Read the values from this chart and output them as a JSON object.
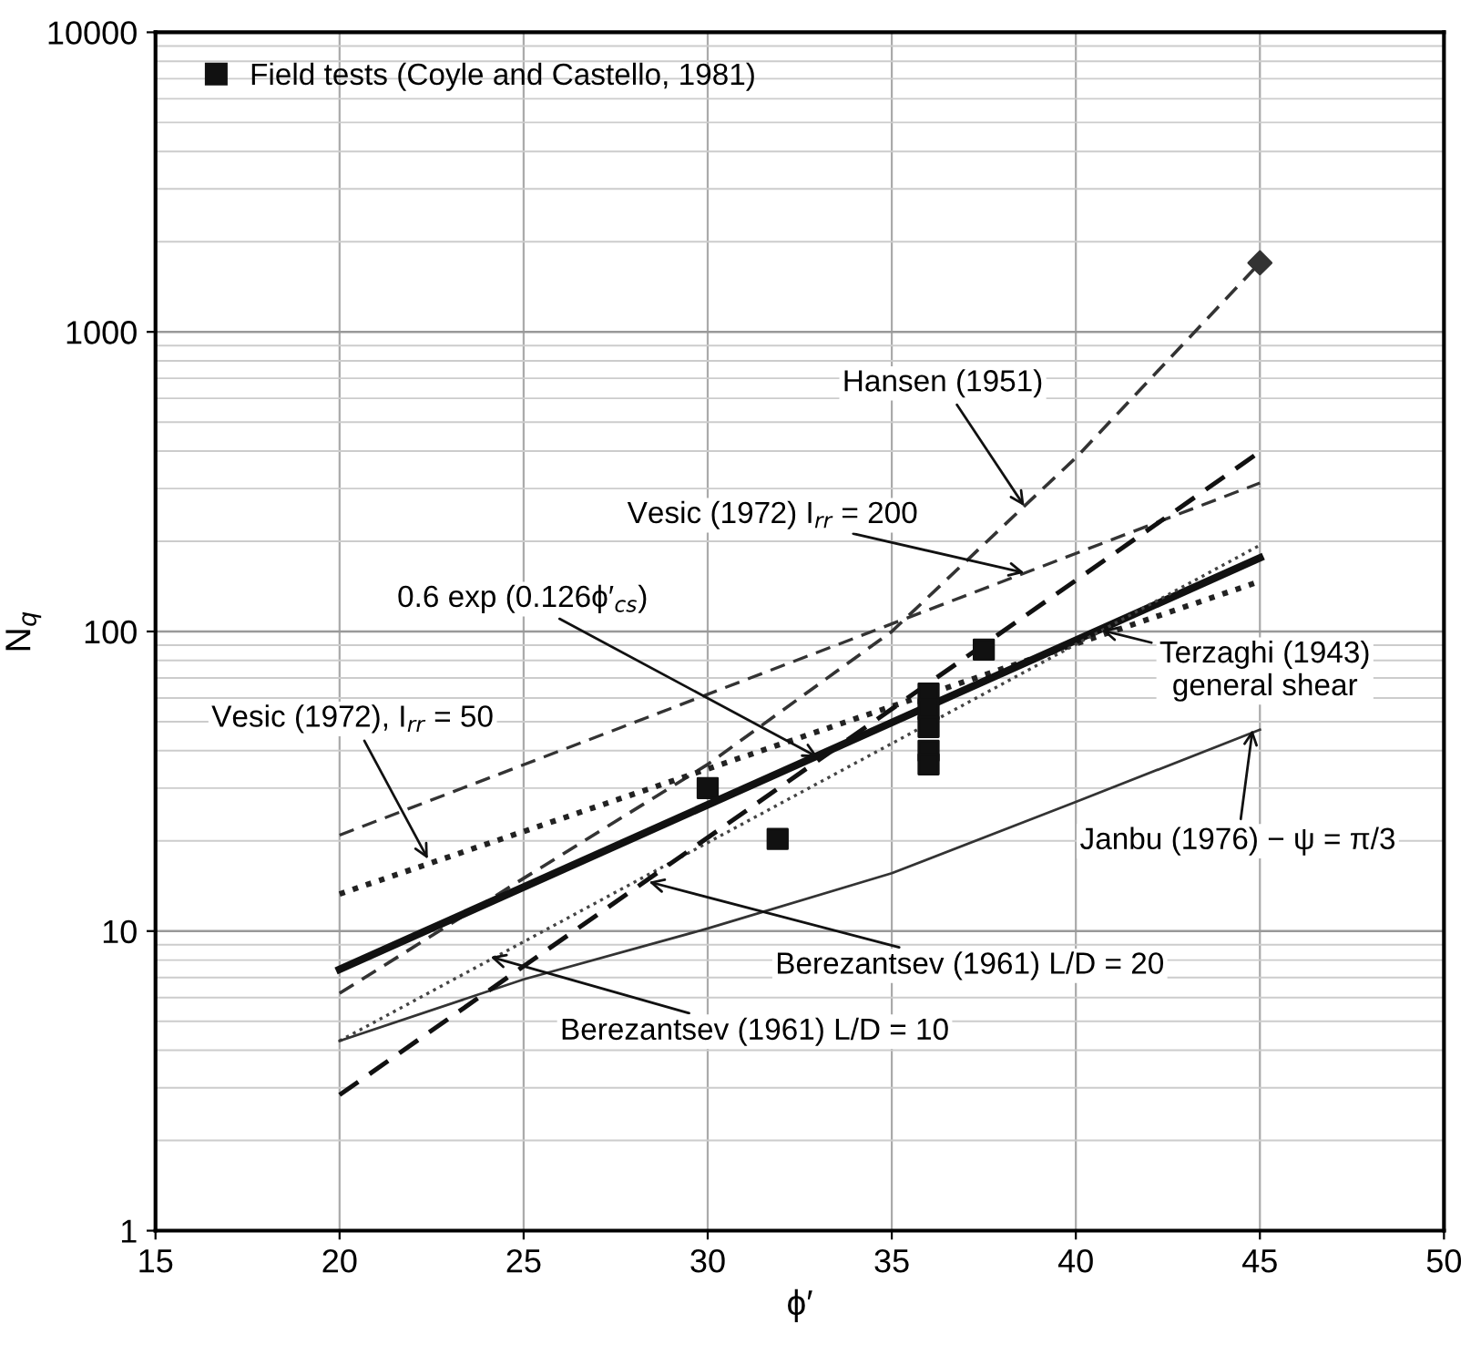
{
  "chart_data": {
    "type": "line",
    "xlabel": "ϕ′",
    "ylabel": "N$_{q}$",
    "xlim": [
      15,
      50
    ],
    "xticks": [
      15,
      20,
      25,
      30,
      35,
      40,
      45,
      50
    ],
    "ylim": [
      1,
      10000
    ],
    "yticks": [
      1,
      10,
      100,
      1000,
      10000
    ],
    "log": "y",
    "grid": true,
    "legend": "top left",
    "series": [
      {
        "x": [
          20,
          25,
          30,
          35,
          38.6,
          40,
          45
        ],
        "values": [
          6.2,
          15,
          36,
          100,
          262,
          380,
          1700
        ],
        "color": "#333333",
        "line_style": "dashed"
      },
      {
        "x": [
          45
        ],
        "values": [
          1700
        ],
        "color": "#333333",
        "type": "scatter",
        "marker": "diamond"
      },
      {
        "x": [
          20,
          45
        ],
        "values": [
          20.9,
          313
        ],
        "color": "#333333",
        "line_style": "dashed"
      },
      {
        "x": [
          20,
          45
        ],
        "values": [
          13.3,
          147
        ],
        "color": "#222222",
        "line_style": "dotted"
      },
      {
        "x": [
          20,
          45
        ],
        "values": [
          7.45,
          176
        ],
        "color": "#111111",
        "line_style": "solid"
      },
      {
        "x": [
          20,
          45
        ],
        "values": [
          4.3,
          194
        ],
        "color": "#444444",
        "line_style": "dotted"
      },
      {
        "x": [
          20,
          25,
          30,
          35,
          40,
          45
        ],
        "values": [
          4.3,
          6.9,
          10.2,
          15.6,
          27,
          47
        ],
        "color": "#333333",
        "line_style": "solid"
      },
      {
        "x": [
          20,
          45
        ],
        "values": [
          2.84,
          398
        ],
        "color": "#111111",
        "line_style": "dashed"
      },
      {
        "name": "Field tests (Coyle and Castello, 1981)",
        "type": "scatter",
        "marker": "square",
        "color": "#111111",
        "x": [
          30,
          31.9,
          36,
          36,
          36,
          36,
          36,
          37.5
        ],
        "values": [
          30,
          20.3,
          62,
          55,
          48,
          40,
          36,
          87
        ]
      }
    ],
    "annotations": [
      {
        "text": "Hansen (1951)",
        "x": 38.6,
        "y": 262
      },
      {
        "text": "Vesic (1972) I$_{rr}$ = 200",
        "x": 38.6,
        "y": 157
      },
      {
        "text": "0.6 exp (0.126ϕ′$_{cs}$)",
        "x": 33,
        "y": 38
      },
      {
        "text": "Terzaghi (1943)\ngeneral shear",
        "x": 40.7,
        "y": 101
      },
      {
        "text": "Vesic (1972), I$_{rr}$ = 50",
        "x": 22.4,
        "y": 17.4
      },
      {
        "text": "Janbu (1976) − ψ = π/3",
        "x": 44.8,
        "y": 47
      },
      {
        "text": "Berezantsev (1961) L/D = 20",
        "x": 28.4,
        "y": 14.6
      },
      {
        "text": "Berezantsev (1961) L/D = 10",
        "x": 24.1,
        "y": 8.2
      }
    ]
  }
}
